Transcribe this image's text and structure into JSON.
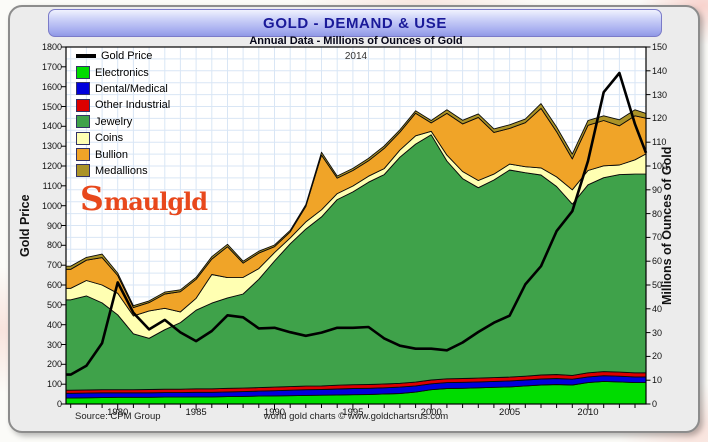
{
  "header": {
    "title": "GOLD - DEMAND & USE"
  },
  "subtitle": "Annual Data - Millions of Ounces of Gold",
  "year_note": "2014",
  "watermark": {
    "big": "S",
    "rest": "maulgld"
  },
  "footer": {
    "source": "Source: CPM Group",
    "credit": "world gold charts © www.goldchartsrus.com"
  },
  "colors": {
    "panel_bg": "#ECECEC",
    "plot_bg": "#FFFFFF",
    "grid": "#D9E6F5",
    "frame": "#000000",
    "header_text": "#1A1A99"
  },
  "chart_data": {
    "type": "area",
    "stacked": true,
    "title": "GOLD - DEMAND & USE",
    "subtitle": "Annual Data - Millions of Ounces of Gold",
    "grid": true,
    "legend_position": "top-left",
    "x_axis": {
      "min": 1976.7,
      "max": 2013.7,
      "tick_years": [
        1980,
        1985,
        1990,
        1995,
        2000,
        2005,
        2010
      ],
      "minor_step": 1
    },
    "left_axis": {
      "label": "Gold Price",
      "min": 0,
      "max": 1800,
      "step": 100
    },
    "right_axis": {
      "label": "Millions of Ounces of Gold",
      "min": 0,
      "max": 150,
      "step": 10,
      "grid_step": 5
    },
    "x": [
      1977,
      1978,
      1979,
      1980,
      1981,
      1982,
      1983,
      1984,
      1985,
      1986,
      1987,
      1988,
      1989,
      1990,
      1991,
      1992,
      1993,
      1994,
      1995,
      1996,
      1997,
      1998,
      1999,
      2000,
      2001,
      2002,
      2003,
      2004,
      2005,
      2006,
      2007,
      2008,
      2009,
      2010,
      2011,
      2012,
      2013,
      2014
    ],
    "series": [
      {
        "name": "Electronics",
        "kind": "area",
        "color": "#00DC00",
        "values": [
          2.5,
          2.6,
          2.7,
          2.8,
          2.8,
          2.8,
          2.9,
          2.9,
          3.0,
          3.0,
          3.1,
          3.2,
          3.3,
          3.4,
          3.5,
          3.6,
          3.7,
          3.8,
          3.9,
          4.0,
          4.2,
          4.4,
          5.0,
          6.0,
          6.5,
          6.6,
          6.8,
          7.0,
          7.2,
          7.6,
          8.0,
          8.2,
          8.0,
          9.0,
          9.5,
          9.3,
          9.0,
          9.0
        ]
      },
      {
        "name": "Dental/Medical",
        "kind": "area",
        "color": "#0000DC",
        "values": [
          2.0,
          2.0,
          2.0,
          1.9,
          1.9,
          1.9,
          1.9,
          1.9,
          1.9,
          1.9,
          2.0,
          2.0,
          2.1,
          2.2,
          2.3,
          2.4,
          2.4,
          2.5,
          2.6,
          2.6,
          2.6,
          2.7,
          2.6,
          2.5,
          2.5,
          2.5,
          2.5,
          2.5,
          2.5,
          2.5,
          2.5,
          2.5,
          2.4,
          2.4,
          2.4,
          2.4,
          2.4,
          2.4
        ]
      },
      {
        "name": "Other Industrial",
        "kind": "area",
        "color": "#DC0000",
        "values": [
          1.3,
          1.3,
          1.3,
          1.3,
          1.3,
          1.4,
          1.4,
          1.4,
          1.5,
          1.5,
          1.5,
          1.5,
          1.5,
          1.5,
          1.5,
          1.5,
          1.5,
          1.6,
          1.6,
          1.6,
          1.6,
          1.6,
          1.6,
          1.6,
          1.6,
          1.6,
          1.6,
          1.6,
          1.6,
          1.6,
          1.7,
          1.7,
          1.6,
          1.7,
          1.7,
          1.7,
          1.7,
          1.7
        ]
      },
      {
        "name": "Jewelry",
        "kind": "area",
        "color": "#3FA24A",
        "values": [
          38.0,
          39.5,
          36.5,
          31.5,
          23.5,
          21.5,
          25.0,
          28.0,
          33.0,
          36.0,
          38.0,
          39.5,
          45.5,
          53.0,
          60.0,
          66.0,
          71.0,
          78.0,
          81.0,
          85.0,
          88.0,
          95.0,
          100.0,
          103.0,
          91.5,
          84.0,
          80.0,
          83.0,
          87.0,
          85.5,
          84.0,
          79.0,
          72.0,
          79.0,
          81.5,
          83.0,
          83.5,
          83.5
        ]
      },
      {
        "name": "Coins",
        "kind": "area",
        "color": "#FFFFB2",
        "values": [
          4.8,
          6.5,
          7.5,
          9.0,
          7.5,
          11.5,
          9.0,
          4.5,
          5.0,
          12.0,
          8.5,
          7.0,
          4.5,
          3.5,
          2.5,
          3.0,
          3.0,
          2.5,
          2.5,
          2.5,
          2.5,
          3.0,
          3.5,
          1.5,
          2.5,
          3.0,
          3.0,
          2.5,
          2.5,
          2.5,
          3.0,
          4.0,
          6.0,
          6.0,
          5.0,
          4.0,
          6.0,
          8.5
        ]
      },
      {
        "name": "Bullion",
        "kind": "area",
        "color": "#F0A428",
        "values": [
          8.0,
          8.5,
          11.5,
          7.5,
          3.5,
          3.5,
          6.0,
          8.5,
          8.0,
          6.5,
          13.0,
          6.0,
          6.5,
          2.5,
          2.5,
          6.5,
          23.0,
          6.5,
          6.5,
          6.5,
          8.5,
          7.5,
          9.5,
          3.5,
          17.5,
          20.0,
          26.5,
          17.5,
          15.0,
          18.5,
          25.0,
          19.0,
          13.0,
          19.0,
          19.0,
          16.5,
          18.5,
          15.0
        ]
      },
      {
        "name": "Medallions",
        "kind": "area",
        "color": "#AB9327",
        "values": [
          1.3,
          1.2,
          1.5,
          1.0,
          0.8,
          0.7,
          0.8,
          0.8,
          0.8,
          1.0,
          1.0,
          0.8,
          0.8,
          0.7,
          0.7,
          0.8,
          1.2,
          0.9,
          0.9,
          1.0,
          1.0,
          1.0,
          1.0,
          1.0,
          1.5,
          1.5,
          1.5,
          1.5,
          1.5,
          1.5,
          2.0,
          2.0,
          2.0,
          2.0,
          2.0,
          2.5,
          2.5,
          2.0
        ]
      },
      {
        "name": "Gold Price",
        "kind": "line",
        "axis": "left",
        "color": "#000000",
        "values": [
          148,
          193,
          307,
          613,
          460,
          376,
          424,
          361,
          317,
          368,
          447,
          437,
          381,
          384,
          362,
          344,
          360,
          384,
          384,
          388,
          331,
          294,
          279,
          279,
          271,
          310,
          363,
          410,
          445,
          603,
          695,
          872,
          972,
          1225,
          1572,
          1669,
          1411,
          1266
        ]
      }
    ]
  }
}
